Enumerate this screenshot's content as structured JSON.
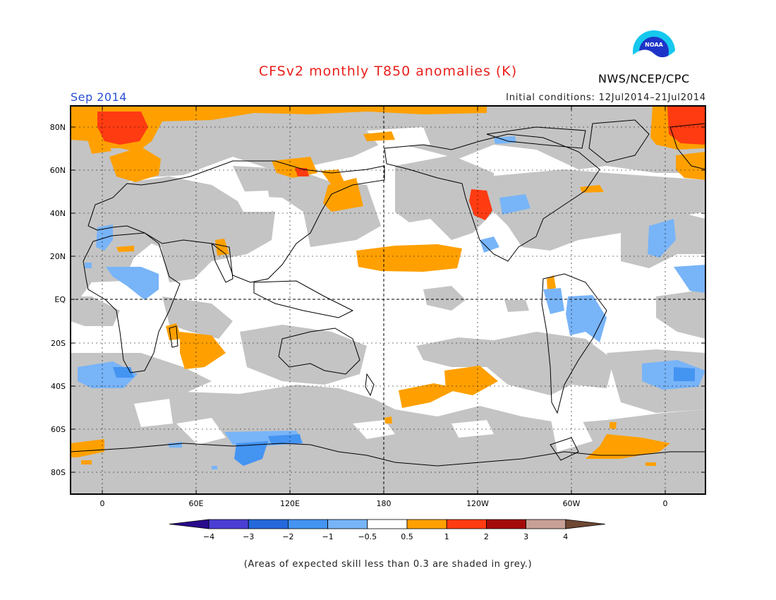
{
  "header": {
    "title": "CFSv2 monthly T850 anomalies (K)",
    "forecast_month": "Sep 2014",
    "initial_conditions": "Initial conditions: 12Jul2014–21Jul2014",
    "organization": "NWS/NCEP/CPC",
    "logo_text": "NOAA"
  },
  "map": {
    "lat_labels": [
      "80N",
      "60N",
      "40N",
      "20N",
      "EQ",
      "20S",
      "40S",
      "60S",
      "80S"
    ],
    "lon_labels": [
      "0",
      "60E",
      "120E",
      "180",
      "120W",
      "60W",
      "0"
    ],
    "colors": {
      "skill_grey": "#c4c4c4",
      "pos_05_1": "#ffa000",
      "pos_1_2": "#ff3b12",
      "neg_05_1": "#78b4f8",
      "neg_1_2": "#4494f2"
    }
  },
  "colorbar": {
    "tick_labels": [
      "−4",
      "−3",
      "−2",
      "−1",
      "−0.5",
      "0.5",
      "1",
      "2",
      "3",
      "4"
    ],
    "colors": [
      "#280a8c",
      "#4a3ed4",
      "#2468dc",
      "#4494f2",
      "#78b4f8",
      "#ffffff",
      "#ffa000",
      "#ff3b12",
      "#a50a0a",
      "#c8a096",
      "#6e4832"
    ]
  },
  "footnote": "(Areas of expected skill less than 0.3 are shaded in grey.)"
}
